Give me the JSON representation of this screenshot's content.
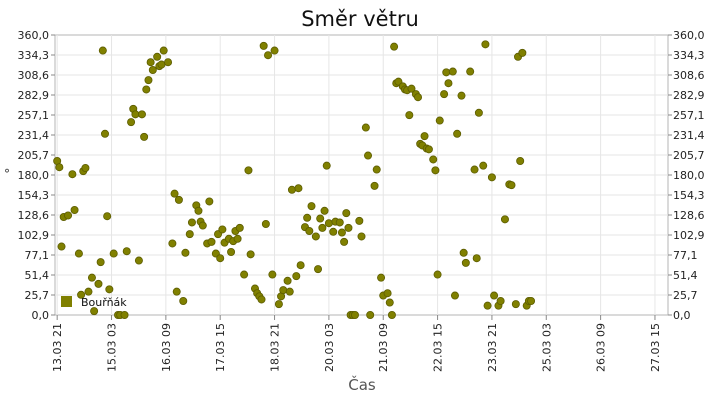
{
  "chart_data": {
    "type": "scatter",
    "title": "Směr větru",
    "xlabel": "Čas",
    "ylabel": "°",
    "ylim": [
      0,
      360
    ],
    "yticks": [
      "0,0",
      "25,7",
      "51,4",
      "77,1",
      "102,9",
      "128,6",
      "154,3",
      "180,0",
      "205,7",
      "231,4",
      "257,1",
      "282,9",
      "308,6",
      "334,3",
      "360,0"
    ],
    "xticks": [
      {
        "label": "13.03 21",
        "t": 0.0
      },
      {
        "label": "15.03 03",
        "t": 1.25
      },
      {
        "label": "16.03 09",
        "t": 2.5
      },
      {
        "label": "17.03 15",
        "t": 3.75
      },
      {
        "label": "18.03 21",
        "t": 5.0
      },
      {
        "label": "20.03 03",
        "t": 6.25
      },
      {
        "label": "21.03 09",
        "t": 7.5
      },
      {
        "label": "22.03 15",
        "t": 8.75
      },
      {
        "label": "23.03 21",
        "t": 10.0
      },
      {
        "label": "25.03 03",
        "t": 11.25
      },
      {
        "label": "26.03 09",
        "t": 12.5
      },
      {
        "label": "27.03 15",
        "t": 13.75
      }
    ],
    "x_range": [
      -0.05,
      14.05
    ],
    "grid": true,
    "legend_position": "bottom-left",
    "series": [
      {
        "name": "Bouřňák",
        "color": "#808000",
        "points": [
          [
            0.0,
            198
          ],
          [
            0.05,
            190
          ],
          [
            0.1,
            88
          ],
          [
            0.15,
            126
          ],
          [
            0.25,
            128
          ],
          [
            0.35,
            181
          ],
          [
            0.4,
            135
          ],
          [
            0.5,
            79
          ],
          [
            0.55,
            26
          ],
          [
            0.6,
            185
          ],
          [
            0.65,
            189
          ],
          [
            0.72,
            30
          ],
          [
            0.8,
            48
          ],
          [
            0.85,
            5
          ],
          [
            0.95,
            40
          ],
          [
            1.0,
            68
          ],
          [
            1.05,
            340
          ],
          [
            1.1,
            233
          ],
          [
            1.15,
            127
          ],
          [
            1.2,
            33
          ],
          [
            1.3,
            79
          ],
          [
            1.4,
            0
          ],
          [
            1.45,
            0
          ],
          [
            1.55,
            0
          ],
          [
            1.6,
            82
          ],
          [
            1.7,
            248
          ],
          [
            1.75,
            265
          ],
          [
            1.8,
            258
          ],
          [
            1.88,
            70
          ],
          [
            1.95,
            258
          ],
          [
            2.0,
            229
          ],
          [
            2.05,
            290
          ],
          [
            2.1,
            302
          ],
          [
            2.15,
            325
          ],
          [
            2.2,
            315
          ],
          [
            2.3,
            332
          ],
          [
            2.35,
            320
          ],
          [
            2.4,
            322
          ],
          [
            2.45,
            340
          ],
          [
            2.55,
            325
          ],
          [
            2.65,
            92
          ],
          [
            2.7,
            156
          ],
          [
            2.75,
            30
          ],
          [
            2.8,
            148
          ],
          [
            2.9,
            18
          ],
          [
            2.95,
            80
          ],
          [
            3.05,
            104
          ],
          [
            3.1,
            119
          ],
          [
            3.2,
            141
          ],
          [
            3.25,
            134
          ],
          [
            3.3,
            120
          ],
          [
            3.35,
            115
          ],
          [
            3.45,
            92
          ],
          [
            3.5,
            146
          ],
          [
            3.55,
            94
          ],
          [
            3.65,
            79
          ],
          [
            3.7,
            104
          ],
          [
            3.75,
            73
          ],
          [
            3.8,
            110
          ],
          [
            3.85,
            93
          ],
          [
            3.95,
            98
          ],
          [
            4.0,
            81
          ],
          [
            4.05,
            95
          ],
          [
            4.1,
            108
          ],
          [
            4.15,
            98
          ],
          [
            4.2,
            112
          ],
          [
            4.3,
            52
          ],
          [
            4.4,
            186
          ],
          [
            4.45,
            78
          ],
          [
            4.55,
            34
          ],
          [
            4.6,
            28
          ],
          [
            4.65,
            24
          ],
          [
            4.7,
            20
          ],
          [
            4.75,
            346
          ],
          [
            4.8,
            117
          ],
          [
            4.85,
            334
          ],
          [
            4.95,
            52
          ],
          [
            5.0,
            340
          ],
          [
            5.1,
            14
          ],
          [
            5.15,
            24
          ],
          [
            5.2,
            32
          ],
          [
            5.3,
            44
          ],
          [
            5.35,
            30
          ],
          [
            5.4,
            161
          ],
          [
            5.5,
            50
          ],
          [
            5.55,
            163
          ],
          [
            5.6,
            64
          ],
          [
            5.7,
            113
          ],
          [
            5.75,
            125
          ],
          [
            5.8,
            108
          ],
          [
            5.85,
            140
          ],
          [
            5.95,
            101
          ],
          [
            6.0,
            59
          ],
          [
            6.05,
            124
          ],
          [
            6.1,
            112
          ],
          [
            6.15,
            134
          ],
          [
            6.2,
            192
          ],
          [
            6.25,
            118
          ],
          [
            6.35,
            107
          ],
          [
            6.4,
            120
          ],
          [
            6.5,
            119
          ],
          [
            6.55,
            106
          ],
          [
            6.6,
            94
          ],
          [
            6.65,
            131
          ],
          [
            6.7,
            112
          ],
          [
            6.75,
            0
          ],
          [
            6.8,
            0
          ],
          [
            6.85,
            0
          ],
          [
            6.95,
            121
          ],
          [
            7.0,
            101
          ],
          [
            7.1,
            241
          ],
          [
            7.15,
            205
          ],
          [
            7.2,
            0
          ],
          [
            7.3,
            166
          ],
          [
            7.35,
            187
          ],
          [
            7.45,
            48
          ],
          [
            7.5,
            25
          ],
          [
            7.6,
            28
          ],
          [
            7.65,
            16
          ],
          [
            7.7,
            0
          ],
          [
            7.75,
            345
          ],
          [
            7.8,
            298
          ],
          [
            7.85,
            300
          ],
          [
            7.95,
            294
          ],
          [
            8.0,
            290
          ],
          [
            8.05,
            289
          ],
          [
            8.1,
            257
          ],
          [
            8.15,
            291
          ],
          [
            8.25,
            284
          ],
          [
            8.3,
            280
          ],
          [
            8.35,
            220
          ],
          [
            8.4,
            218
          ],
          [
            8.45,
            230
          ],
          [
            8.5,
            214
          ],
          [
            8.55,
            213
          ],
          [
            8.65,
            200
          ],
          [
            8.7,
            186
          ],
          [
            8.75,
            52
          ],
          [
            8.8,
            250
          ],
          [
            8.9,
            284
          ],
          [
            8.95,
            312
          ],
          [
            9.0,
            298
          ],
          [
            9.1,
            313
          ],
          [
            9.15,
            25
          ],
          [
            9.2,
            233
          ],
          [
            9.3,
            282
          ],
          [
            9.35,
            80
          ],
          [
            9.4,
            67
          ],
          [
            9.5,
            313
          ],
          [
            9.6,
            187
          ],
          [
            9.65,
            73
          ],
          [
            9.7,
            260
          ],
          [
            9.8,
            192
          ],
          [
            9.85,
            348
          ],
          [
            9.9,
            12
          ],
          [
            10.0,
            177
          ],
          [
            10.05,
            25
          ],
          [
            10.15,
            12
          ],
          [
            10.2,
            18
          ],
          [
            10.3,
            123
          ],
          [
            10.4,
            168
          ],
          [
            10.45,
            167
          ],
          [
            10.55,
            14
          ],
          [
            10.6,
            332
          ],
          [
            10.65,
            198
          ],
          [
            10.7,
            337
          ],
          [
            10.8,
            12
          ],
          [
            10.85,
            18
          ],
          [
            10.9,
            18
          ]
        ]
      }
    ]
  }
}
